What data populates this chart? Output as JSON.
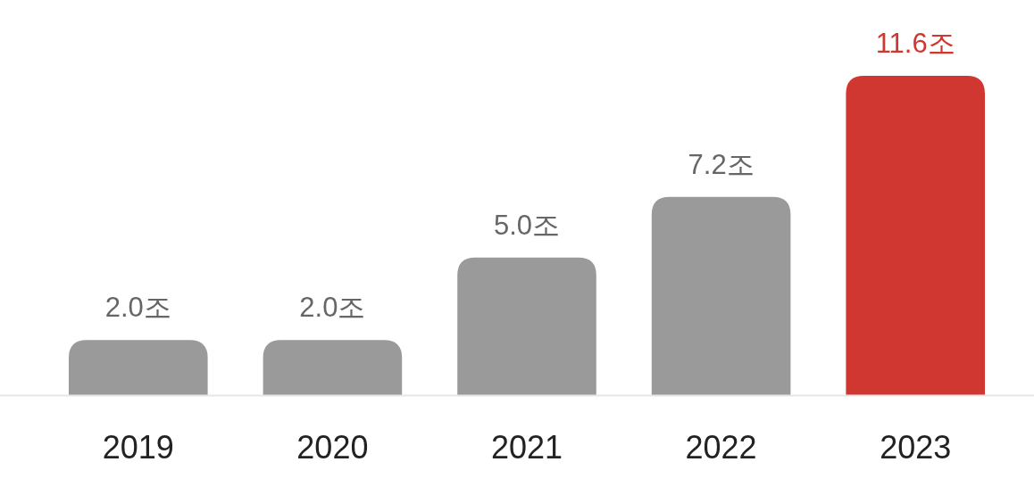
{
  "chart_data": {
    "type": "bar",
    "categories": [
      "2019",
      "2020",
      "2021",
      "2022",
      "2023"
    ],
    "values": [
      2.0,
      2.0,
      5.0,
      7.2,
      11.6
    ],
    "value_labels": [
      "2.0조",
      "2.0조",
      "5.0조",
      "7.2조",
      "11.6조"
    ],
    "colors": [
      "#9a9a9a",
      "#9a9a9a",
      "#9a9a9a",
      "#9a9a9a",
      "#d03730"
    ]
  }
}
